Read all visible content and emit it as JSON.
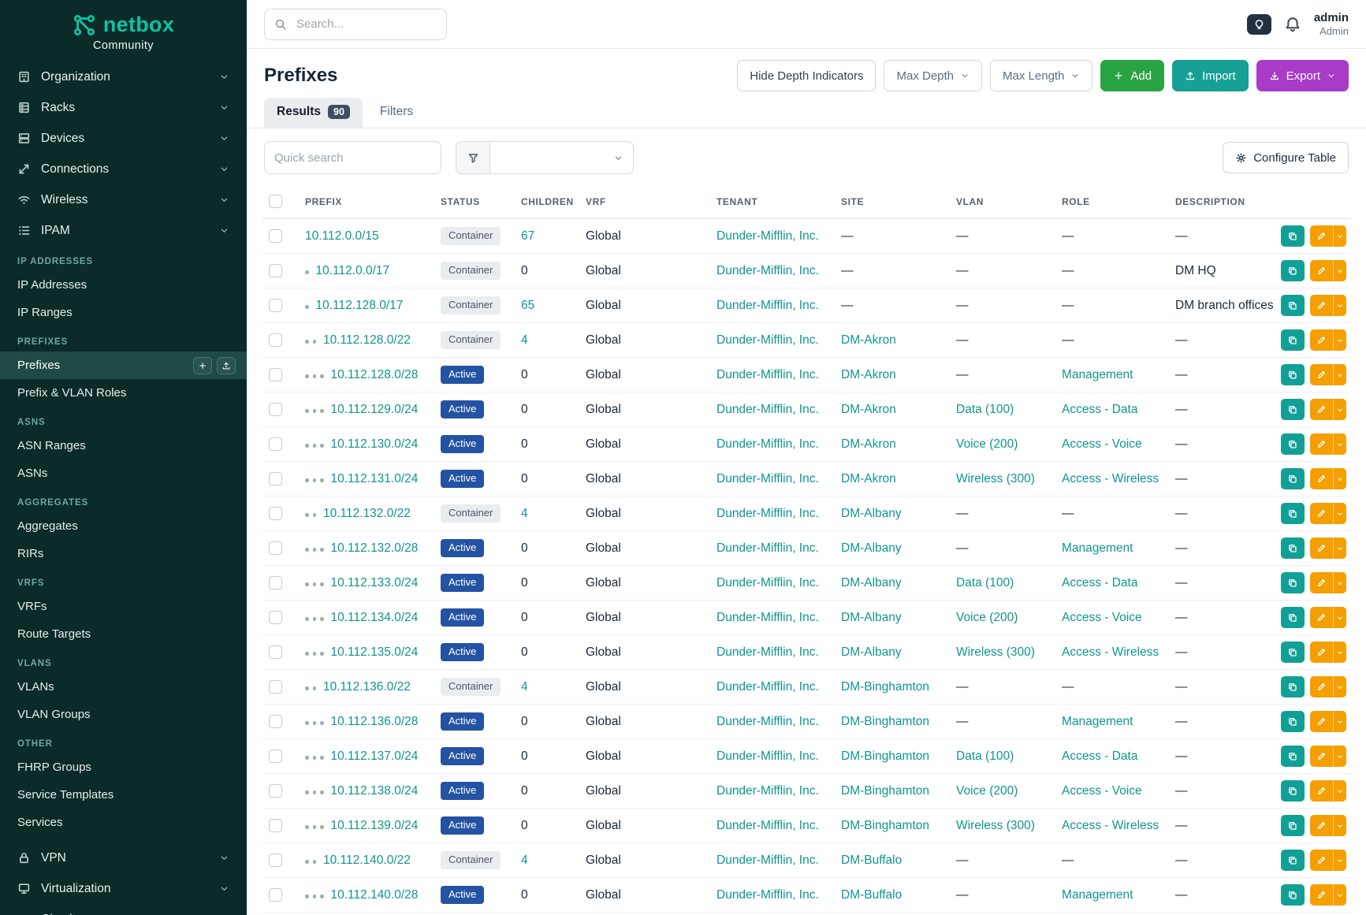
{
  "brand": {
    "name": "netbox",
    "subtitle": "Community"
  },
  "topbar": {
    "search_placeholder": "Search...",
    "user_name": "admin",
    "user_role": "Admin"
  },
  "sidebar": {
    "top_items": [
      {
        "label": "Organization",
        "icon": "building"
      },
      {
        "label": "Racks",
        "icon": "rack"
      },
      {
        "label": "Devices",
        "icon": "devices"
      },
      {
        "label": "Connections",
        "icon": "connections"
      },
      {
        "label": "Wireless",
        "icon": "wifi"
      },
      {
        "label": "IPAM",
        "icon": "ipam"
      }
    ],
    "sections": [
      {
        "title": "IP Addresses",
        "items": [
          {
            "label": "IP Addresses"
          },
          {
            "label": "IP Ranges"
          }
        ]
      },
      {
        "title": "Prefixes",
        "items": [
          {
            "label": "Prefixes",
            "active": true
          },
          {
            "label": "Prefix & VLAN Roles"
          }
        ]
      },
      {
        "title": "ASNS",
        "items": [
          {
            "label": "ASN Ranges"
          },
          {
            "label": "ASNs"
          }
        ]
      },
      {
        "title": "Aggregates",
        "items": [
          {
            "label": "Aggregates"
          },
          {
            "label": "RIRs"
          }
        ]
      },
      {
        "title": "VRFS",
        "items": [
          {
            "label": "VRFs"
          },
          {
            "label": "Route Targets"
          }
        ]
      },
      {
        "title": "VLANS",
        "items": [
          {
            "label": "VLANs"
          },
          {
            "label": "VLAN Groups"
          }
        ]
      },
      {
        "title": "Other",
        "items": [
          {
            "label": "FHRP Groups"
          },
          {
            "label": "Service Templates"
          },
          {
            "label": "Services"
          }
        ]
      }
    ],
    "bottom_items": [
      {
        "label": "VPN",
        "icon": "lock"
      },
      {
        "label": "Virtualization",
        "icon": "monitor"
      },
      {
        "label": "Circuits",
        "icon": "circuit"
      }
    ]
  },
  "page": {
    "title": "Prefixes",
    "toolbar": {
      "hide_depth_label": "Hide Depth Indicators",
      "max_depth_label": "Max Depth",
      "max_length_label": "Max Length",
      "add_label": "Add",
      "import_label": "Import",
      "export_label": "Export"
    },
    "tabs": {
      "results_label": "Results",
      "results_count": "90",
      "filters_label": "Filters"
    },
    "quick_search_placeholder": "Quick search",
    "configure_table_label": "Configure Table"
  },
  "colors": {
    "accent_teal": "#0f968b",
    "sidebar_bg": "#0a2b27",
    "active_badge_blue": "#2353a2",
    "add_green": "#2aa344",
    "import_teal": "#16a096",
    "export_purple": "#a93bc9",
    "edit_orange": "#f59f00"
  },
  "table": {
    "columns": [
      "PREFIX",
      "STATUS",
      "CHILDREN",
      "VRF",
      "TENANT",
      "SITE",
      "VLAN",
      "ROLE",
      "DESCRIPTION"
    ],
    "rows": [
      {
        "depth": 0,
        "prefix": "10.112.0.0/15",
        "status": "Container",
        "children": "67",
        "vrf": "Global",
        "tenant": "Dunder-Mifflin, Inc.",
        "site": "—",
        "vlan": "—",
        "role": "—",
        "description": "—"
      },
      {
        "depth": 1,
        "prefix": "10.112.0.0/17",
        "status": "Container",
        "children": "0",
        "vrf": "Global",
        "tenant": "Dunder-Mifflin, Inc.",
        "site": "—",
        "vlan": "—",
        "role": "—",
        "description": "DM HQ"
      },
      {
        "depth": 1,
        "prefix": "10.112.128.0/17",
        "status": "Container",
        "children": "65",
        "vrf": "Global",
        "tenant": "Dunder-Mifflin, Inc.",
        "site": "—",
        "vlan": "—",
        "role": "—",
        "description": "DM branch offices"
      },
      {
        "depth": 2,
        "prefix": "10.112.128.0/22",
        "status": "Container",
        "children": "4",
        "vrf": "Global",
        "tenant": "Dunder-Mifflin, Inc.",
        "site": "DM-Akron",
        "vlan": "—",
        "role": "—",
        "description": "—"
      },
      {
        "depth": 3,
        "prefix": "10.112.128.0/28",
        "status": "Active",
        "children": "0",
        "vrf": "Global",
        "tenant": "Dunder-Mifflin, Inc.",
        "site": "DM-Akron",
        "vlan": "—",
        "role": "Management",
        "description": "—"
      },
      {
        "depth": 3,
        "prefix": "10.112.129.0/24",
        "status": "Active",
        "children": "0",
        "vrf": "Global",
        "tenant": "Dunder-Mifflin, Inc.",
        "site": "DM-Akron",
        "vlan": "Data (100)",
        "role": "Access - Data",
        "description": "—"
      },
      {
        "depth": 3,
        "prefix": "10.112.130.0/24",
        "status": "Active",
        "children": "0",
        "vrf": "Global",
        "tenant": "Dunder-Mifflin, Inc.",
        "site": "DM-Akron",
        "vlan": "Voice (200)",
        "role": "Access - Voice",
        "description": "—"
      },
      {
        "depth": 3,
        "prefix": "10.112.131.0/24",
        "status": "Active",
        "children": "0",
        "vrf": "Global",
        "tenant": "Dunder-Mifflin, Inc.",
        "site": "DM-Akron",
        "vlan": "Wireless (300)",
        "role": "Access - Wireless",
        "description": "—"
      },
      {
        "depth": 2,
        "prefix": "10.112.132.0/22",
        "status": "Container",
        "children": "4",
        "vrf": "Global",
        "tenant": "Dunder-Mifflin, Inc.",
        "site": "DM-Albany",
        "vlan": "—",
        "role": "—",
        "description": "—"
      },
      {
        "depth": 3,
        "prefix": "10.112.132.0/28",
        "status": "Active",
        "children": "0",
        "vrf": "Global",
        "tenant": "Dunder-Mifflin, Inc.",
        "site": "DM-Albany",
        "vlan": "—",
        "role": "Management",
        "description": "—"
      },
      {
        "depth": 3,
        "prefix": "10.112.133.0/24",
        "status": "Active",
        "children": "0",
        "vrf": "Global",
        "tenant": "Dunder-Mifflin, Inc.",
        "site": "DM-Albany",
        "vlan": "Data (100)",
        "role": "Access - Data",
        "description": "—"
      },
      {
        "depth": 3,
        "prefix": "10.112.134.0/24",
        "status": "Active",
        "children": "0",
        "vrf": "Global",
        "tenant": "Dunder-Mifflin, Inc.",
        "site": "DM-Albany",
        "vlan": "Voice (200)",
        "role": "Access - Voice",
        "description": "—"
      },
      {
        "depth": 3,
        "prefix": "10.112.135.0/24",
        "status": "Active",
        "children": "0",
        "vrf": "Global",
        "tenant": "Dunder-Mifflin, Inc.",
        "site": "DM-Albany",
        "vlan": "Wireless (300)",
        "role": "Access - Wireless",
        "description": "—"
      },
      {
        "depth": 2,
        "prefix": "10.112.136.0/22",
        "status": "Container",
        "children": "4",
        "vrf": "Global",
        "tenant": "Dunder-Mifflin, Inc.",
        "site": "DM-Binghamton",
        "vlan": "—",
        "role": "—",
        "description": "—"
      },
      {
        "depth": 3,
        "prefix": "10.112.136.0/28",
        "status": "Active",
        "children": "0",
        "vrf": "Global",
        "tenant": "Dunder-Mifflin, Inc.",
        "site": "DM-Binghamton",
        "vlan": "—",
        "role": "Management",
        "description": "—"
      },
      {
        "depth": 3,
        "prefix": "10.112.137.0/24",
        "status": "Active",
        "children": "0",
        "vrf": "Global",
        "tenant": "Dunder-Mifflin, Inc.",
        "site": "DM-Binghamton",
        "vlan": "Data (100)",
        "role": "Access - Data",
        "description": "—"
      },
      {
        "depth": 3,
        "prefix": "10.112.138.0/24",
        "status": "Active",
        "children": "0",
        "vrf": "Global",
        "tenant": "Dunder-Mifflin, Inc.",
        "site": "DM-Binghamton",
        "vlan": "Voice (200)",
        "role": "Access - Voice",
        "description": "—"
      },
      {
        "depth": 3,
        "prefix": "10.112.139.0/24",
        "status": "Active",
        "children": "0",
        "vrf": "Global",
        "tenant": "Dunder-Mifflin, Inc.",
        "site": "DM-Binghamton",
        "vlan": "Wireless (300)",
        "role": "Access - Wireless",
        "description": "—"
      },
      {
        "depth": 2,
        "prefix": "10.112.140.0/22",
        "status": "Container",
        "children": "4",
        "vrf": "Global",
        "tenant": "Dunder-Mifflin, Inc.",
        "site": "DM-Buffalo",
        "vlan": "—",
        "role": "—",
        "description": "—"
      },
      {
        "depth": 3,
        "prefix": "10.112.140.0/28",
        "status": "Active",
        "children": "0",
        "vrf": "Global",
        "tenant": "Dunder-Mifflin, Inc.",
        "site": "DM-Buffalo",
        "vlan": "—",
        "role": "Management",
        "description": "—"
      }
    ]
  }
}
